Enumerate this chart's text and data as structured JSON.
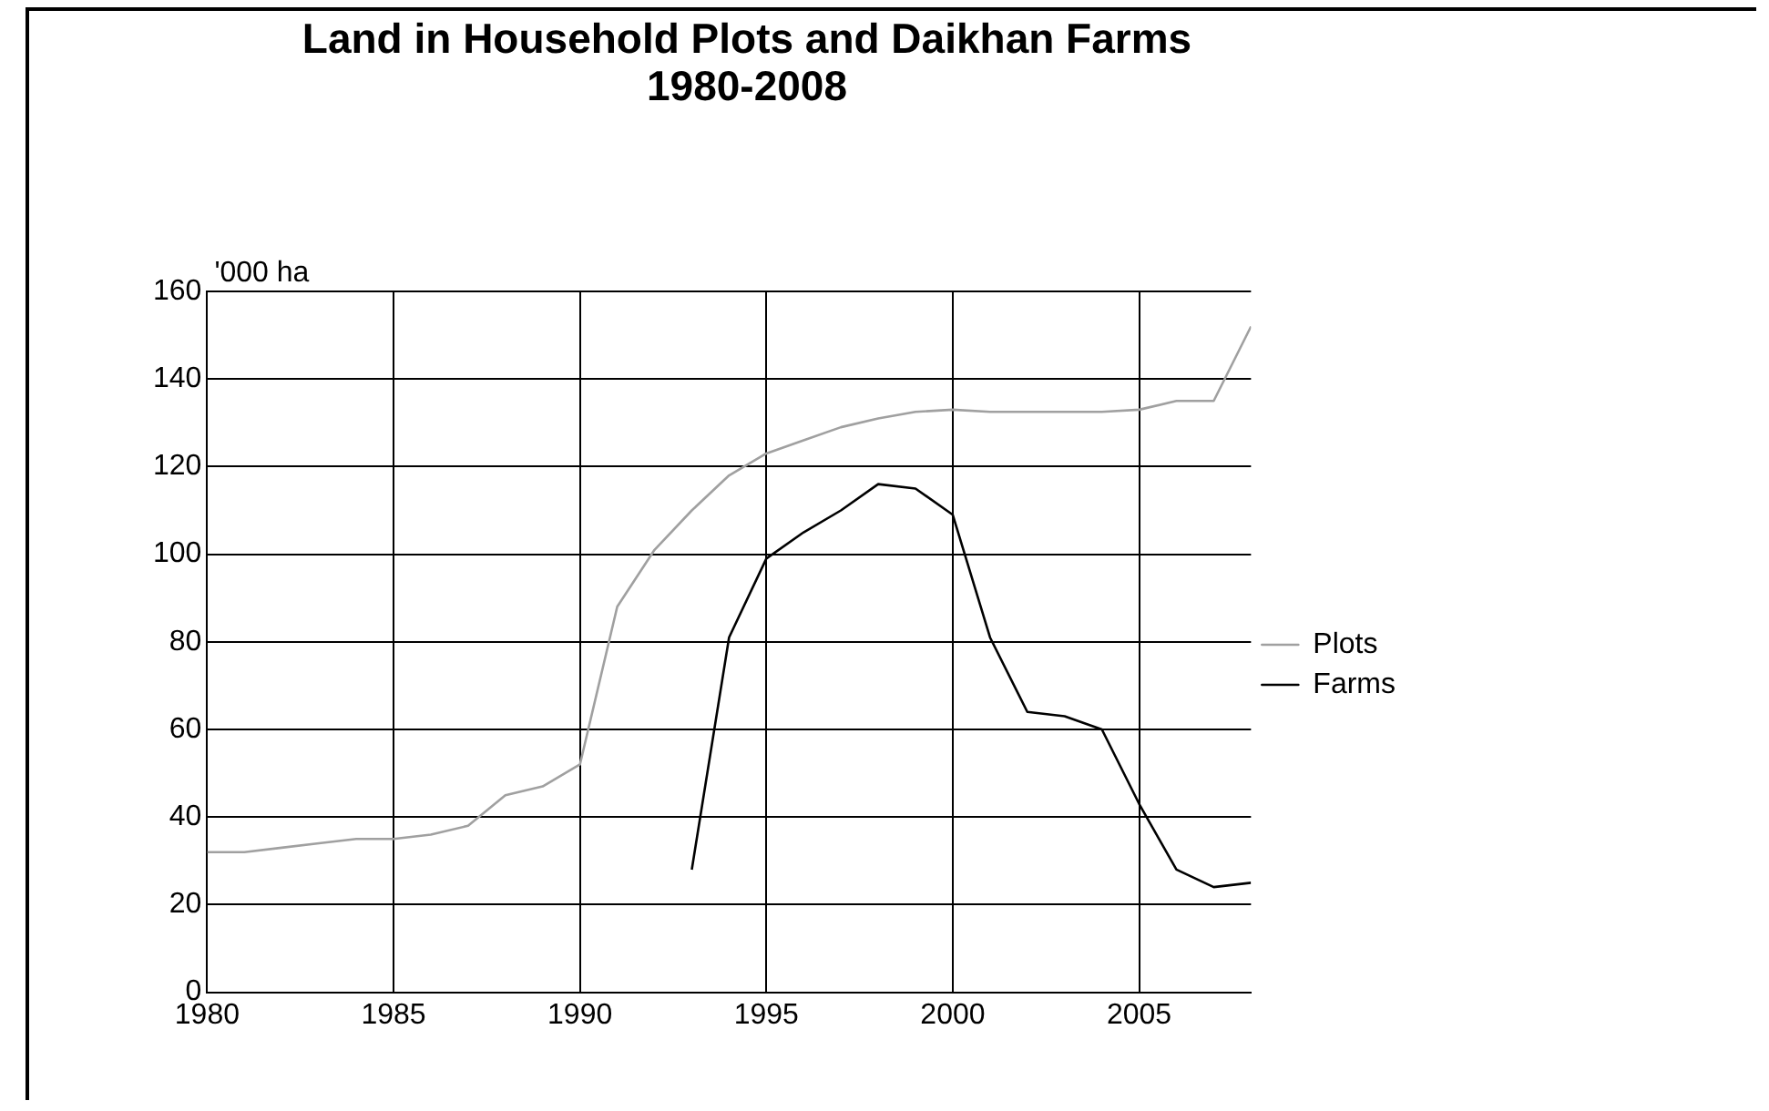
{
  "chart_data": {
    "type": "line",
    "title": "Land in Household Plots and Daikhan Farms",
    "subtitle": "1980-2008",
    "ylabel": "'000 ha",
    "x": [
      1980,
      1981,
      1982,
      1983,
      1984,
      1985,
      1986,
      1987,
      1988,
      1989,
      1990,
      1991,
      1992,
      1993,
      1994,
      1995,
      1996,
      1997,
      1998,
      1999,
      2000,
      2001,
      2002,
      2003,
      2004,
      2005,
      2006,
      2007,
      2008
    ],
    "series": [
      {
        "name": "Plots",
        "color": "#a0a0a0",
        "values": [
          32,
          32,
          33,
          34,
          35,
          35,
          36,
          38,
          45,
          47,
          52,
          88,
          101,
          110,
          118,
          123,
          126,
          129,
          131,
          132.5,
          133,
          132.5,
          132.5,
          132.5,
          132.5,
          133,
          135,
          135,
          152
        ]
      },
      {
        "name": "Farms",
        "color": "#000000",
        "values": [
          null,
          null,
          null,
          null,
          null,
          null,
          null,
          null,
          null,
          null,
          null,
          null,
          null,
          28,
          81,
          99,
          105,
          110,
          116,
          115,
          109,
          81,
          64,
          63,
          60,
          43,
          28,
          24,
          25
        ]
      }
    ],
    "xlim": [
      1980,
      2008
    ],
    "xticks": [
      1980,
      1985,
      1990,
      1995,
      2000,
      2005
    ],
    "ylim": [
      0,
      160
    ],
    "yticks": [
      0,
      20,
      40,
      60,
      80,
      100,
      120,
      140,
      160
    ],
    "grid": true,
    "legend": "right",
    "marker": "none",
    "line_style": "solid"
  }
}
